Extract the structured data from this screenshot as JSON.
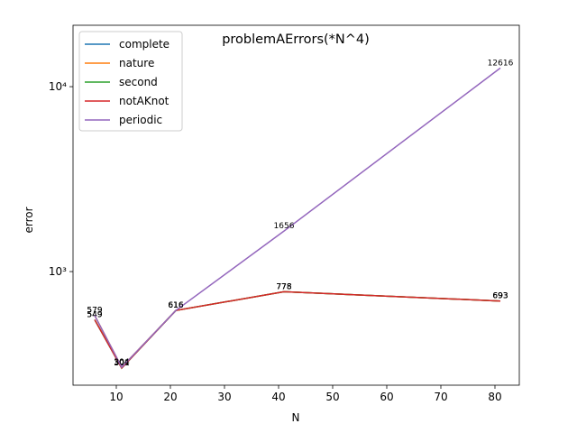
{
  "chart_data": {
    "type": "line",
    "title": "problemAErrors(*N^4)",
    "xlabel": "N",
    "ylabel": "error",
    "x": [
      6,
      11,
      21,
      41,
      81
    ],
    "series": [
      {
        "name": "complete",
        "color": "#1f77b4",
        "values": [
          549,
          301,
          616,
          778,
          693
        ]
      },
      {
        "name": "nature",
        "color": "#ff7f0e",
        "values": [
          579,
          304,
          616,
          778,
          693
        ]
      },
      {
        "name": "second",
        "color": "#2ca02c",
        "values": [
          549,
          301,
          616,
          778,
          693
        ]
      },
      {
        "name": "notAKnot",
        "color": "#d62728",
        "values": [
          549,
          301,
          616,
          778,
          693
        ]
      },
      {
        "name": "periodic",
        "color": "#9467bd",
        "values": [
          579,
          304,
          616,
          1656,
          12616
        ]
      }
    ],
    "xlim": [
      2,
      84.5
    ],
    "xticks": [
      10,
      20,
      30,
      40,
      50,
      60,
      70,
      80
    ],
    "ylim": [
      243,
      21480
    ],
    "log_y": true,
    "yticks": [
      {
        "value": 1000,
        "label": "10³"
      },
      {
        "value": 10000,
        "label": "10⁴"
      }
    ],
    "legend": "upper left"
  }
}
